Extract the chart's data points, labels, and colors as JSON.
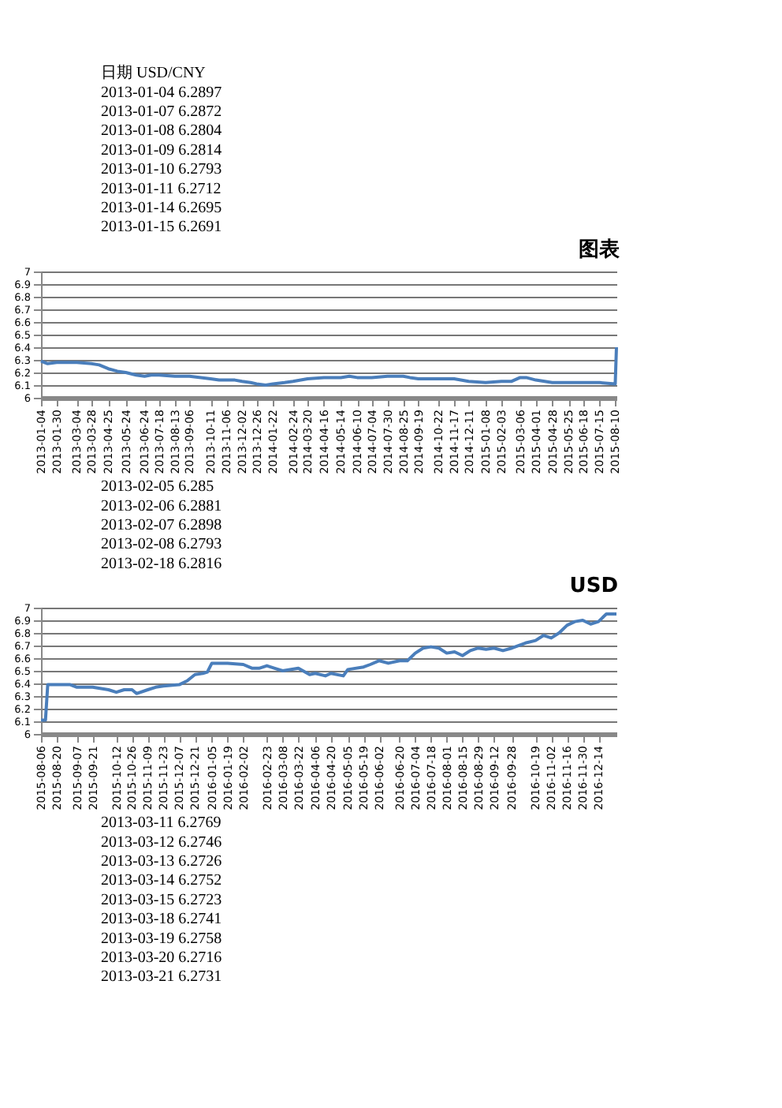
{
  "chart_data": [
    {
      "type": "other",
      "annotations": [
        "日期 USD/CNY",
        "2013-01-04 6.2897",
        "2013-01-07 6.2872",
        "2013-01-08 6.2804",
        "2013-01-09 6.2814",
        "2013-01-10 6.2793",
        "2013-01-11 6.2712",
        "2013-01-14 6.2695",
        "2013-01-15 6.2691"
      ]
    },
    {
      "type": "line",
      "title": "图表",
      "color": "#4a7ebb",
      "grid": "y",
      "marker": "none",
      "x": [
        "2013-01-04",
        "2013-01-15",
        "2013-01-30",
        "2013-02-15",
        "2013-03-04",
        "2013-03-28",
        "2013-04-10",
        "2013-04-25",
        "2013-05-10",
        "2013-05-24",
        "2013-06-10",
        "2013-06-24",
        "2013-07-05",
        "2013-07-18",
        "2013-08-13",
        "2013-09-06",
        "2013-09-25",
        "2013-10-11",
        "2013-10-25",
        "2013-11-06",
        "2013-11-20",
        "2013-12-02",
        "2013-12-16",
        "2013-12-26",
        "2014-01-10",
        "2014-01-22",
        "2014-02-10",
        "2014-02-24",
        "2014-03-20",
        "2014-04-16",
        "2014-05-14",
        "2014-05-28",
        "2014-06-10",
        "2014-07-04",
        "2014-07-30",
        "2014-08-25",
        "2014-09-05",
        "2014-09-19",
        "2014-10-22",
        "2014-11-05",
        "2014-11-17",
        "2014-12-11",
        "2015-01-08",
        "2015-02-03",
        "2015-02-20",
        "2015-03-06",
        "2015-03-16",
        "2015-04-01",
        "2015-04-28",
        "2015-05-25",
        "2015-06-18",
        "2015-07-15",
        "2015-08-10",
        "2015-08-12"
      ],
      "values": [
        6.29,
        6.27,
        6.28,
        6.28,
        6.28,
        6.27,
        6.26,
        6.23,
        6.21,
        6.2,
        6.18,
        6.17,
        6.18,
        6.18,
        6.17,
        6.17,
        6.16,
        6.15,
        6.14,
        6.14,
        6.14,
        6.13,
        6.12,
        6.11,
        6.1,
        6.11,
        6.12,
        6.13,
        6.15,
        6.16,
        6.16,
        6.17,
        6.16,
        6.16,
        6.17,
        6.17,
        6.16,
        6.15,
        6.15,
        6.15,
        6.15,
        6.13,
        6.12,
        6.13,
        6.13,
        6.16,
        6.16,
        6.14,
        6.12,
        6.12,
        6.12,
        6.12,
        6.11,
        6.4
      ],
      "xlim": [
        "2013-01-04",
        "2015-08-12"
      ],
      "xticks": [
        "2013-01-04",
        "2013-01-30",
        "2013-03-04",
        "2013-03-28",
        "2013-04-25",
        "2013-05-24",
        "2013-06-24",
        "2013-07-18",
        "2013-08-13",
        "2013-09-06",
        "2013-10-11",
        "2013-11-06",
        "2013-12-02",
        "2013-12-26",
        "2014-01-22",
        "2014-02-24",
        "2014-03-20",
        "2014-04-16",
        "2014-05-14",
        "2014-06-10",
        "2014-07-04",
        "2014-07-30",
        "2014-08-25",
        "2014-09-19",
        "2014-10-22",
        "2014-11-17",
        "2014-12-11",
        "2015-01-08",
        "2015-02-03",
        "2015-03-06",
        "2015-04-01",
        "2015-04-28",
        "2015-05-25",
        "2015-06-18",
        "2015-07-15",
        "2015-08-10"
      ],
      "ylim": [
        6,
        7
      ],
      "yticks": [
        6,
        6.1,
        6.2,
        6.3,
        6.4,
        6.5,
        6.6,
        6.7,
        6.8,
        6.9,
        7
      ]
    },
    {
      "type": "other",
      "annotations": [
        "2013-02-05 6.285",
        "2013-02-06 6.2881",
        "2013-02-07 6.2898",
        "2013-02-08 6.2793",
        "2013-02-18 6.2816"
      ]
    },
    {
      "type": "line",
      "title": "USD",
      "color": "#4a7ebb",
      "grid": "y",
      "marker": "none",
      "x": [
        "2015-08-06",
        "2015-08-10",
        "2015-08-12",
        "2015-08-20",
        "2015-09-01",
        "2015-09-07",
        "2015-09-21",
        "2015-10-05",
        "2015-10-12",
        "2015-10-19",
        "2015-10-26",
        "2015-10-30",
        "2015-11-09",
        "2015-11-16",
        "2015-11-23",
        "2015-12-07",
        "2015-12-14",
        "2015-12-21",
        "2015-12-28",
        "2016-01-01",
        "2016-01-05",
        "2016-01-19",
        "2016-02-02",
        "2016-02-10",
        "2016-02-16",
        "2016-02-23",
        "2016-03-01",
        "2016-03-08",
        "2016-03-22",
        "2016-04-01",
        "2016-04-06",
        "2016-04-15",
        "2016-04-20",
        "2016-05-01",
        "2016-05-05",
        "2016-05-19",
        "2016-05-25",
        "2016-06-02",
        "2016-06-10",
        "2016-06-20",
        "2016-06-27",
        "2016-07-04",
        "2016-07-11",
        "2016-07-18",
        "2016-07-25",
        "2016-08-01",
        "2016-08-08",
        "2016-08-15",
        "2016-08-22",
        "2016-08-29",
        "2016-09-05",
        "2016-09-12",
        "2016-09-20",
        "2016-09-28",
        "2016-10-10",
        "2016-10-19",
        "2016-10-26",
        "2016-11-02",
        "2016-11-09",
        "2016-11-16",
        "2016-11-23",
        "2016-11-30",
        "2016-12-07",
        "2016-12-14",
        "2016-12-21",
        "2016-12-30"
      ],
      "values": [
        6.11,
        6.11,
        6.39,
        6.39,
        6.39,
        6.37,
        6.37,
        6.35,
        6.33,
        6.35,
        6.35,
        6.32,
        6.35,
        6.37,
        6.38,
        6.39,
        6.42,
        6.47,
        6.48,
        6.49,
        6.56,
        6.56,
        6.55,
        6.52,
        6.52,
        6.54,
        6.52,
        6.5,
        6.52,
        6.47,
        6.48,
        6.46,
        6.48,
        6.46,
        6.51,
        6.53,
        6.55,
        6.58,
        6.56,
        6.58,
        6.58,
        6.64,
        6.68,
        6.69,
        6.68,
        6.64,
        6.65,
        6.62,
        6.66,
        6.68,
        6.67,
        6.68,
        6.66,
        6.68,
        6.72,
        6.74,
        6.78,
        6.76,
        6.8,
        6.86,
        6.89,
        6.9,
        6.87,
        6.89,
        6.95,
        6.95
      ],
      "xlim": [
        "2015-08-06",
        "2016-12-30"
      ],
      "xticks": [
        "2015-08-06",
        "2015-08-20",
        "2015-09-07",
        "2015-09-21",
        "2015-10-12",
        "2015-10-26",
        "2015-11-09",
        "2015-11-23",
        "2015-12-07",
        "2015-12-21",
        "2016-01-05",
        "2016-01-19",
        "2016-02-02",
        "2016-02-23",
        "2016-03-08",
        "2016-03-22",
        "2016-04-06",
        "2016-04-20",
        "2016-05-05",
        "2016-05-19",
        "2016-06-02",
        "2016-06-20",
        "2016-07-04",
        "2016-07-18",
        "2016-08-01",
        "2016-08-15",
        "2016-08-29",
        "2016-09-12",
        "2016-09-28",
        "2016-10-19",
        "2016-11-02",
        "2016-11-16",
        "2016-11-30",
        "2016-12-14"
      ],
      "ylim": [
        6,
        7
      ],
      "yticks": [
        6,
        6.1,
        6.2,
        6.3,
        6.4,
        6.5,
        6.6,
        6.7,
        6.8,
        6.9,
        7
      ]
    },
    {
      "type": "other",
      "annotations": [
        "2013-03-11 6.2769",
        "2013-03-12 6.2746",
        "2013-03-13 6.2726",
        "2013-03-14 6.2752",
        "2013-03-15 6.2723",
        "2013-03-18 6.2741",
        "2013-03-19 6.2758",
        "2013-03-20 6.2716",
        "2013-03-21 6.2731"
      ]
    }
  ]
}
